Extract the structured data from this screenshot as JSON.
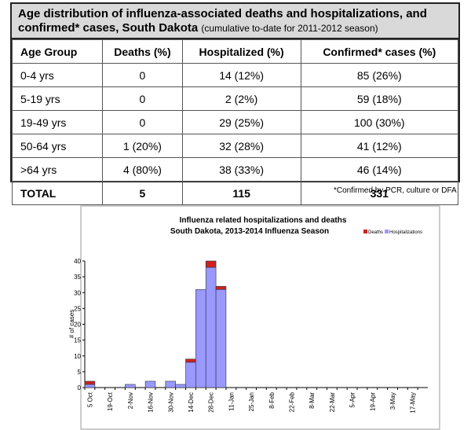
{
  "header": {
    "title": "Age distribution of influenza-associated deaths and hospitalizations, and confirmed* cases, South Dakota",
    "subtitle": "(cumulative to-date for 2011-2012 season)"
  },
  "table": {
    "columns": [
      "Age Group",
      "Deaths (%)",
      "Hospitalized (%)",
      "Confirmed* cases (%)"
    ],
    "rows": [
      [
        "0-4 yrs",
        "0",
        "14 (12%)",
        "85 (26%)"
      ],
      [
        "5-19 yrs",
        "0",
        "2 (2%)",
        "59 (18%)"
      ],
      [
        "19-49 yrs",
        "0",
        "29 (25%)",
        "100 (30%)"
      ],
      [
        "50-64 yrs",
        "1 (20%)",
        "32 (28%)",
        "41 (12%)"
      ],
      [
        ">64 yrs",
        "4 (80%)",
        "38 (33%)",
        "46 (14%)"
      ],
      [
        "TOTAL",
        "5",
        "115",
        "331"
      ]
    ]
  },
  "footnote": "*Confirmed by PCR, culture or DFA",
  "chart_data": {
    "type": "stacked-bar",
    "title": "Influenza related hospitalizations and deaths",
    "subtitle": "South Dakota, 2013-2014 Influenza Season",
    "y_label": "# of cases",
    "categories": [
      "5 Oct",
      null,
      "19-Oct",
      null,
      "2-Nov",
      null,
      "16-Nov",
      null,
      "30-Nov",
      null,
      "14-Dec",
      null,
      "28-Dec",
      null,
      "11-Jan",
      null,
      "25-Jan",
      null,
      "8-Feb",
      null,
      "22-Feb",
      null,
      "8-Mar",
      null,
      "22-Mar",
      null,
      "5-Apr",
      null,
      "19-Apr",
      null,
      "3-May",
      null,
      "17-May",
      null
    ],
    "series": [
      {
        "name": "Hospitalizations",
        "color": "#9999ff",
        "values": [
          1,
          0,
          0,
          0,
          1,
          0,
          2,
          0,
          2,
          1,
          8,
          31,
          38,
          31,
          0,
          0,
          0,
          0,
          0,
          0,
          0,
          0,
          0,
          0,
          0,
          0,
          0,
          0,
          0,
          0,
          0,
          0,
          0,
          0
        ]
      },
      {
        "name": "Deaths",
        "color": "#cc2222",
        "values": [
          1,
          0,
          0,
          0,
          0,
          0,
          0,
          0,
          0,
          0,
          1,
          0,
          2,
          1,
          0,
          0,
          0,
          0,
          0,
          0,
          0,
          0,
          0,
          0,
          0,
          0,
          0,
          0,
          0,
          0,
          0,
          0,
          0,
          0
        ]
      }
    ],
    "legend_order": [
      1,
      0
    ],
    "ylim": [
      0,
      40
    ],
    "yticks": [
      0,
      5,
      10,
      15,
      20,
      25,
      30,
      35,
      40
    ]
  }
}
